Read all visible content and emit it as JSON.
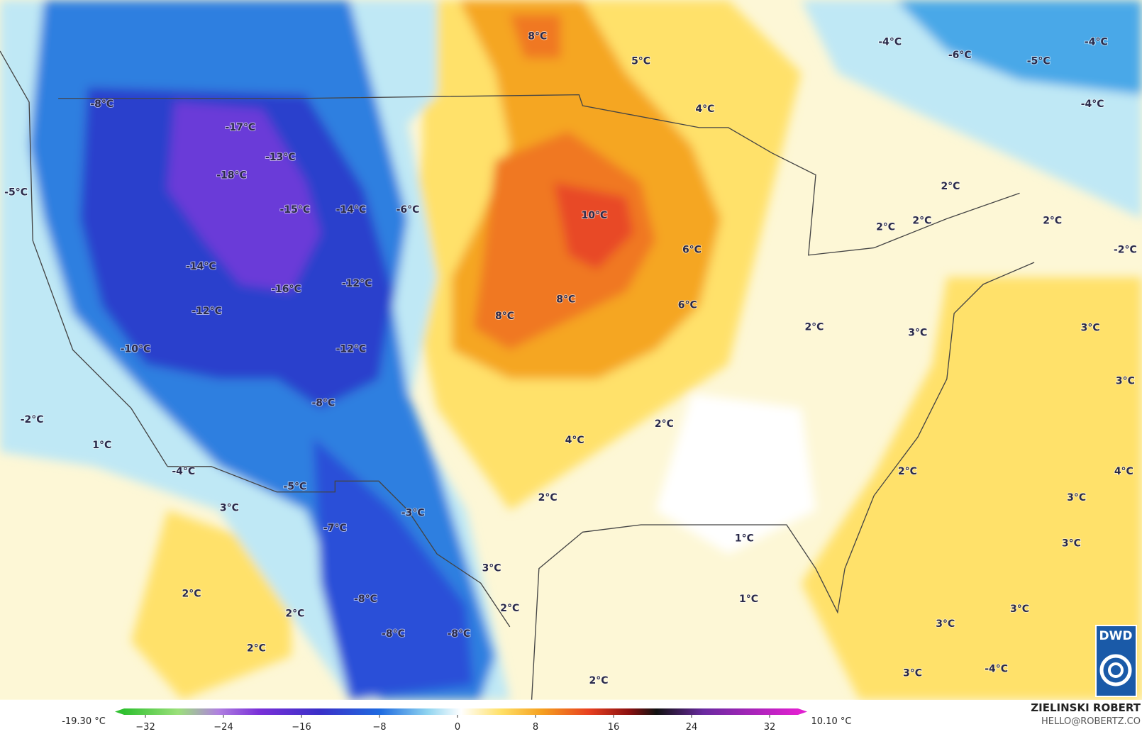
{
  "labels": [
    "8°C",
    "5°C",
    "-4°C",
    "-6°C",
    "-4°C",
    "-5°C",
    "-4°C",
    "4°C",
    "-8°C",
    "-17°C",
    "-13°C",
    "-18°C",
    "-5°C",
    "-15°C",
    "-14°C",
    "-6°C",
    "10°C",
    "2°C",
    "2°C",
    "2°C",
    "2°C",
    "-2°C",
    "6°C",
    "-14°C",
    "-16°C",
    "-12°C",
    "8°C",
    "6°C",
    "-12°C",
    "8°C",
    "2°C",
    "3°C",
    "3°C",
    "-10°C",
    "-12°C",
    "3°C",
    "-8°C",
    "2°C",
    "-2°C",
    "4°C",
    "1°C",
    "-4°C",
    "2°C",
    "4°C",
    "-5°C",
    "2°C",
    "3°C",
    "3°C",
    "-3°C",
    "-7°C",
    "1°C",
    "3°C",
    "3°C",
    "2°C",
    "-8°C",
    "1°C",
    "2°C",
    "3°C",
    "2°C",
    "3°C",
    "-8°C",
    "-8°C",
    "2°C",
    "3°C",
    "-4°C",
    "2°C"
  ],
  "colorbar": {
    "min_label": "-19.30 °C",
    "max_label": "10.10 °C",
    "ticks": [
      {
        "value": -32,
        "label": "−32"
      },
      {
        "value": -24,
        "label": "−24"
      },
      {
        "value": -16,
        "label": "−16"
      },
      {
        "value": -8,
        "label": "−8"
      },
      0,
      8,
      16,
      24,
      32
    ]
  },
  "credit": {
    "name": "ZIELINSKI ROBERT",
    "contact": "HELLO@ROBERTZ.CO"
  },
  "logo": "DWD"
}
